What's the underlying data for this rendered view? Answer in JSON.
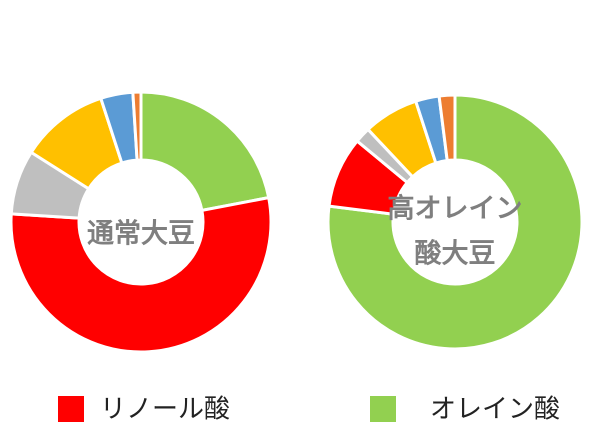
{
  "chart_data": [
    {
      "type": "donut",
      "center_label": [
        "通常大豆"
      ],
      "categories": [
        null,
        null,
        null,
        null,
        null,
        null
      ],
      "values": [
        22,
        54,
        8,
        11,
        4,
        1
      ],
      "colors": [
        "#92d050",
        "#ff0000",
        "#bfbfbf",
        "#ffc000",
        "#5b9bd5",
        "#ed7d31"
      ]
    },
    {
      "type": "donut",
      "center_label": [
        "高オレイン",
        "酸大豆"
      ],
      "categories": [
        null,
        null,
        null,
        null,
        null,
        null
      ],
      "values": [
        77,
        9,
        2,
        7,
        3,
        2
      ],
      "colors": [
        "#92d050",
        "#ff0000",
        "#bfbfbf",
        "#ffc000",
        "#5b9bd5",
        "#ed7d31"
      ]
    }
  ],
  "legend": [
    {
      "name": "リノール酸",
      "color": "#ff0000"
    },
    {
      "name": "オレイン酸",
      "color": "#92d050"
    }
  ]
}
